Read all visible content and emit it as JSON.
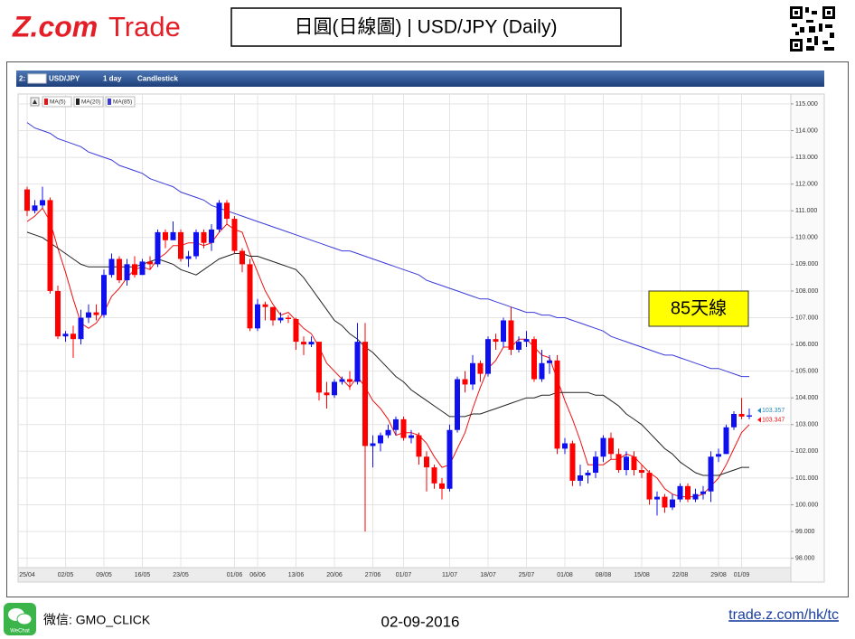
{
  "header": {
    "logo_z": "Z.com",
    "logo_trade": "Trade",
    "title": "日圓(日線圖) | USD/JPY (Daily)"
  },
  "footer": {
    "wechat_icon": "WeChat",
    "wechat": "微信: GMO_CLICK",
    "date": "02-09-2016",
    "url": "trade.z.com/hk/tc"
  },
  "chart_data": {
    "type": "candlestick",
    "toolbar": [
      "2:",
      "USD/JPY",
      "1 day",
      "Candlestick"
    ],
    "annotation": "85天線",
    "up_color": "#1010ee",
    "down_color": "#ff0000",
    "categories": [
      "25/04",
      null,
      null,
      null,
      null,
      "02/05",
      null,
      null,
      null,
      null,
      "09/05",
      null,
      null,
      null,
      null,
      "16/05",
      null,
      null,
      null,
      null,
      "23/05",
      null,
      null,
      null,
      null,
      null,
      null,
      "01/06",
      null,
      null,
      "06/06",
      null,
      null,
      null,
      null,
      "13/06",
      null,
      null,
      null,
      null,
      "20/06",
      null,
      null,
      null,
      null,
      "27/06",
      null,
      null,
      null,
      "01/07",
      null,
      null,
      null,
      null,
      null,
      "11/07",
      null,
      null,
      null,
      null,
      "18/07",
      null,
      null,
      null,
      null,
      "25/07",
      null,
      null,
      null,
      null,
      "01/08",
      null,
      null,
      null,
      null,
      "08/08",
      null,
      null,
      null,
      null,
      "15/08",
      null,
      null,
      null,
      null,
      "22/08",
      null,
      null,
      null,
      null,
      "29/08",
      null,
      null,
      "01/09",
      null
    ],
    "open": [
      111.8,
      111.0,
      111.2,
      111.4,
      108.0,
      106.3,
      106.4,
      106.2,
      107.0,
      107.2,
      107.1,
      108.6,
      109.2,
      108.4,
      109.0,
      108.6,
      109.1,
      109.0,
      110.2,
      109.9,
      110.2,
      109.2,
      109.3,
      110.2,
      109.8,
      110.3,
      111.3,
      110.7,
      109.5,
      109.0,
      106.6,
      107.5,
      107.4,
      106.9,
      107.0,
      106.95,
      106.1,
      106.0,
      106.1,
      104.2,
      104.1,
      104.6,
      104.7,
      104.6,
      106.1,
      102.2,
      102.3,
      102.6,
      102.8,
      103.2,
      102.5,
      102.6,
      101.8,
      101.4,
      100.8,
      100.6,
      102.8,
      104.7,
      104.5,
      105.3,
      104.9,
      106.2,
      106.1,
      106.9,
      105.8,
      106.1,
      106.2,
      104.7,
      105.3,
      105.4,
      102.1,
      102.3,
      100.9,
      101.1,
      101.2,
      101.8,
      102.5,
      101.9,
      101.3,
      101.8,
      101.3,
      101.2,
      100.2,
      100.3,
      99.9,
      100.2,
      100.7,
      100.2,
      100.4,
      100.5,
      101.8,
      101.9,
      102.9,
      103.4,
      103.3
    ],
    "high": [
      111.9,
      111.4,
      111.9,
      111.5,
      108.2,
      106.5,
      106.7,
      107.3,
      107.5,
      107.5,
      108.8,
      109.4,
      109.3,
      109.2,
      109.3,
      109.2,
      109.3,
      110.3,
      110.3,
      110.6,
      110.3,
      109.5,
      110.3,
      110.3,
      110.5,
      111.4,
      111.4,
      110.8,
      109.6,
      109.2,
      107.7,
      107.6,
      107.4,
      107.2,
      107.1,
      107.0,
      106.3,
      106.3,
      106.1,
      104.6,
      104.7,
      104.8,
      105.0,
      106.8,
      106.8,
      102.6,
      102.7,
      103.0,
      103.3,
      103.3,
      102.8,
      102.7,
      102.0,
      101.5,
      101.0,
      103.0,
      104.8,
      105.0,
      105.6,
      105.4,
      106.3,
      106.4,
      107.0,
      107.4,
      106.3,
      106.5,
      106.3,
      105.8,
      105.6,
      105.6,
      102.5,
      102.4,
      101.5,
      101.3,
      102.0,
      102.6,
      102.7,
      102.1,
      102.0,
      102.0,
      101.5,
      101.3,
      100.5,
      100.4,
      100.4,
      100.8,
      100.8,
      100.6,
      100.7,
      102.0,
      102.1,
      103.0,
      103.5,
      104.0,
      103.6
    ],
    "low": [
      110.8,
      110.9,
      111.1,
      107.9,
      106.2,
      106.1,
      105.5,
      106.0,
      106.8,
      106.9,
      107.0,
      108.5,
      108.3,
      108.2,
      108.5,
      108.6,
      108.8,
      108.9,
      109.6,
      109.9,
      109.1,
      108.9,
      109.2,
      109.6,
      109.5,
      110.2,
      110.5,
      109.4,
      108.7,
      106.5,
      106.5,
      106.9,
      106.7,
      106.8,
      106.8,
      105.8,
      105.6,
      105.9,
      103.9,
      103.6,
      104.0,
      104.5,
      104.3,
      104.5,
      99.0,
      101.4,
      102.0,
      102.5,
      102.6,
      102.4,
      102.3,
      101.5,
      100.5,
      100.6,
      100.2,
      100.5,
      102.7,
      104.2,
      104.3,
      104.6,
      104.8,
      105.8,
      105.9,
      105.6,
      105.7,
      105.9,
      104.6,
      104.6,
      104.9,
      101.9,
      101.9,
      100.7,
      100.7,
      100.8,
      101.0,
      101.6,
      101.7,
      101.2,
      101.1,
      101.1,
      101.0,
      100.0,
      99.6,
      99.7,
      99.8,
      100.1,
      100.1,
      100.1,
      100.2,
      100.1,
      101.6,
      101.9,
      102.8,
      103.2,
      103.2
    ],
    "close": [
      111.0,
      111.2,
      111.4,
      108.0,
      106.3,
      106.4,
      106.2,
      107.0,
      107.2,
      107.1,
      108.6,
      109.2,
      108.4,
      109.0,
      108.6,
      109.1,
      109.0,
      110.2,
      109.9,
      110.2,
      109.2,
      109.3,
      110.2,
      109.8,
      110.3,
      111.3,
      110.7,
      109.5,
      109.0,
      106.6,
      107.5,
      107.4,
      106.9,
      107.0,
      106.95,
      106.1,
      106.0,
      106.1,
      104.2,
      104.1,
      104.6,
      104.7,
      104.6,
      106.1,
      102.2,
      102.3,
      102.6,
      102.8,
      103.2,
      102.5,
      102.6,
      101.8,
      101.4,
      100.8,
      100.6,
      102.8,
      104.7,
      104.5,
      105.3,
      104.9,
      106.2,
      106.1,
      106.9,
      105.8,
      106.1,
      106.2,
      104.7,
      105.3,
      105.4,
      102.1,
      102.3,
      100.9,
      101.1,
      101.2,
      101.8,
      102.5,
      101.9,
      101.3,
      101.8,
      101.3,
      101.2,
      100.2,
      100.3,
      99.9,
      100.2,
      100.7,
      100.2,
      100.4,
      100.5,
      101.8,
      101.9,
      102.9,
      103.4,
      103.3,
      103.347
    ],
    "series": [
      {
        "name": "MA(5)",
        "color": "#ee1111",
        "values": [
          110.6,
          110.8,
          111.1,
          110.6,
          109.6,
          108.7,
          107.7,
          106.8,
          106.6,
          106.8,
          107.2,
          107.8,
          108.1,
          108.5,
          108.8,
          108.9,
          108.8,
          109.2,
          109.4,
          109.7,
          109.7,
          109.8,
          109.8,
          109.7,
          109.8,
          110.2,
          110.5,
          110.3,
          110.2,
          109.4,
          108.7,
          108.0,
          107.5,
          107.1,
          107.2,
          106.9,
          106.6,
          106.4,
          105.9,
          105.3,
          105.0,
          104.7,
          104.4,
          104.8,
          104.4,
          103.9,
          103.6,
          103.2,
          102.6,
          102.7,
          102.7,
          102.6,
          102.3,
          101.8,
          101.4,
          101.5,
          102.1,
          102.7,
          103.6,
          104.4,
          105.1,
          105.4,
          105.9,
          105.9,
          106.2,
          106.2,
          105.9,
          105.6,
          105.5,
          104.7,
          103.9,
          103.2,
          102.4,
          101.5,
          101.5,
          101.5,
          101.7,
          101.7,
          101.9,
          101.8,
          101.5,
          101.2,
          101.0,
          100.6,
          100.4,
          100.3,
          100.3,
          100.3,
          100.4,
          100.7,
          101.0,
          101.5,
          102.1,
          102.7,
          103.0
        ]
      },
      {
        "name": "MA(20)",
        "color": "#222222",
        "values": [
          110.2,
          110.1,
          110.0,
          109.8,
          109.6,
          109.4,
          109.2,
          109.0,
          108.9,
          108.9,
          108.9,
          108.9,
          108.9,
          108.9,
          108.9,
          109.0,
          109.1,
          109.2,
          109.1,
          109.0,
          108.8,
          108.7,
          108.6,
          108.8,
          109.0,
          109.2,
          109.3,
          109.4,
          109.4,
          109.3,
          109.3,
          109.2,
          109.1,
          109.0,
          108.9,
          108.8,
          108.5,
          108.1,
          107.7,
          107.3,
          106.9,
          106.7,
          106.4,
          106.2,
          105.9,
          105.7,
          105.4,
          105.1,
          104.8,
          104.6,
          104.3,
          104.1,
          103.9,
          103.7,
          103.5,
          103.3,
          103.3,
          103.3,
          103.4,
          103.4,
          103.5,
          103.6,
          103.7,
          103.8,
          103.9,
          104.0,
          104.0,
          104.1,
          104.1,
          104.2,
          104.2,
          104.2,
          104.2,
          104.2,
          104.1,
          104.1,
          103.9,
          103.7,
          103.4,
          103.2,
          103.0,
          102.7,
          102.4,
          102.1,
          101.9,
          101.6,
          101.4,
          101.2,
          101.1,
          101.1,
          101.1,
          101.2,
          101.3,
          101.4,
          101.4
        ]
      },
      {
        "name": "MA(85)",
        "color": "#3a3ad8",
        "values": [
          114.3,
          114.1,
          114.0,
          113.9,
          113.7,
          113.6,
          113.5,
          113.4,
          113.2,
          113.1,
          113.0,
          112.9,
          112.7,
          112.6,
          112.5,
          112.4,
          112.2,
          112.1,
          112.0,
          111.9,
          111.7,
          111.6,
          111.5,
          111.4,
          111.2,
          111.1,
          111.0,
          110.9,
          110.8,
          110.7,
          110.6,
          110.5,
          110.4,
          110.3,
          110.2,
          110.1,
          110.0,
          109.9,
          109.8,
          109.7,
          109.6,
          109.5,
          109.5,
          109.4,
          109.3,
          109.2,
          109.1,
          109.0,
          108.9,
          108.8,
          108.7,
          108.6,
          108.4,
          108.3,
          108.2,
          108.1,
          108.0,
          107.9,
          107.8,
          107.7,
          107.7,
          107.6,
          107.5,
          107.4,
          107.3,
          107.2,
          107.2,
          107.1,
          107.1,
          107.0,
          107.0,
          106.9,
          106.8,
          106.7,
          106.6,
          106.5,
          106.3,
          106.2,
          106.1,
          106.0,
          105.9,
          105.8,
          105.7,
          105.6,
          105.6,
          105.5,
          105.4,
          105.3,
          105.2,
          105.1,
          105.1,
          105.0,
          104.9,
          104.8,
          104.8
        ]
      }
    ],
    "last_prices": [
      {
        "value": 103.357,
        "color": "#2a8ab8"
      },
      {
        "value": 103.347,
        "color": "#ee1111"
      }
    ],
    "ylim": [
      97.65,
      115.37
    ],
    "yticks": [
      {
        "value": 98,
        "label": "98.000"
      },
      {
        "value": 99,
        "label": "99.000"
      },
      {
        "value": 100,
        "label": "100.000"
      },
      {
        "value": 101,
        "label": "101.000"
      },
      {
        "value": 102,
        "label": "102.000"
      },
      {
        "value": 103,
        "label": "103.000"
      },
      {
        "value": 104,
        "label": "104.000"
      },
      {
        "value": 105,
        "label": "105.000"
      },
      {
        "value": 106,
        "label": "106.000"
      },
      {
        "value": 107,
        "label": "107.000"
      },
      {
        "value": 108,
        "label": "108.000"
      },
      {
        "value": 109,
        "label": "109.000"
      },
      {
        "value": 110,
        "label": "110.000"
      },
      {
        "value": 111,
        "label": "111.000"
      },
      {
        "value": 112,
        "label": "112.000"
      },
      {
        "value": 113,
        "label": "113.000"
      },
      {
        "value": 114,
        "label": "114.000"
      },
      {
        "value": 115,
        "label": "115.000"
      }
    ],
    "grid": true
  }
}
